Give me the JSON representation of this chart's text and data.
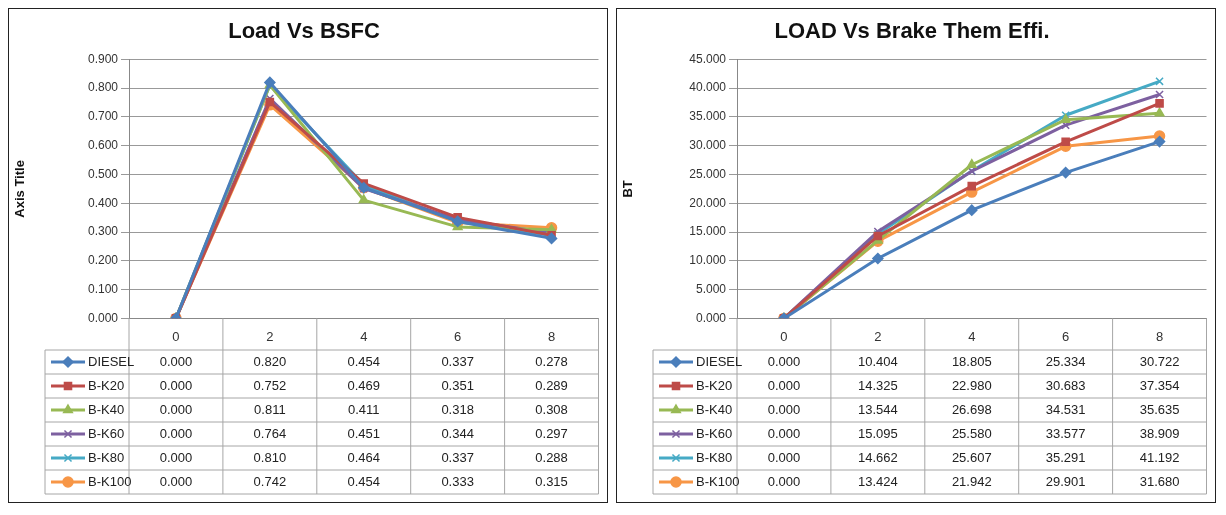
{
  "chart_data": [
    {
      "type": "line",
      "title": "Load Vs BSFC",
      "ylabel": "Axis Title",
      "categories": [
        "0",
        "2",
        "4",
        "6",
        "8"
      ],
      "ylim": [
        0,
        0.9
      ],
      "yticks": [
        {
          "value": 0,
          "label": "0.000"
        },
        {
          "value": 0.1,
          "label": "0.100"
        },
        {
          "value": 0.2,
          "label": "0.200"
        },
        {
          "value": 0.3,
          "label": "0.300"
        },
        {
          "value": 0.4,
          "label": "0.400"
        },
        {
          "value": 0.5,
          "label": "0.500"
        },
        {
          "value": 0.6,
          "label": "0.600"
        },
        {
          "value": 0.7,
          "label": "0.700"
        },
        {
          "value": 0.8,
          "label": "0.800"
        },
        {
          "value": 0.9,
          "label": "0.900"
        }
      ],
      "grid": "y",
      "legend": "bottom",
      "series": [
        {
          "name": "DIESEL",
          "color": "#4a7ebb",
          "marker": "diamond",
          "values": [
            0,
            0.82,
            0.454,
            0.337,
            0.278
          ],
          "value_labels": [
            "0.000",
            "0.820",
            "0.454",
            "0.337",
            "0.278"
          ]
        },
        {
          "name": "B-K20",
          "color": "#be4b48",
          "marker": "square",
          "values": [
            0,
            0.752,
            0.469,
            0.351,
            0.289
          ],
          "value_labels": [
            "0.000",
            "0.752",
            "0.469",
            "0.351",
            "0.289"
          ]
        },
        {
          "name": "B-K40",
          "color": "#98b954",
          "marker": "triangle",
          "values": [
            0,
            0.811,
            0.411,
            0.318,
            0.308
          ],
          "value_labels": [
            "0.000",
            "0.811",
            "0.411",
            "0.318",
            "0.308"
          ]
        },
        {
          "name": "B-K60",
          "color": "#7d60a0",
          "marker": "cross",
          "values": [
            0,
            0.764,
            0.451,
            0.344,
            0.297
          ],
          "value_labels": [
            "0.000",
            "0.764",
            "0.451",
            "0.344",
            "0.297"
          ]
        },
        {
          "name": "B-K80",
          "color": "#46aac5",
          "marker": "cross",
          "values": [
            0,
            0.81,
            0.464,
            0.337,
            0.288
          ],
          "value_labels": [
            "0.000",
            "0.810",
            "0.464",
            "0.337",
            "0.288"
          ]
        },
        {
          "name": "B-K100",
          "color": "#f79646",
          "marker": "circle",
          "values": [
            0,
            0.742,
            0.454,
            0.333,
            0.315
          ],
          "value_labels": [
            "0.000",
            "0.742",
            "0.454",
            "0.333",
            "0.315"
          ]
        }
      ]
    },
    {
      "type": "line",
      "title": "LOAD Vs Brake Them Effi.",
      "ylabel": "BT",
      "categories": [
        "0",
        "2",
        "4",
        "6",
        "8"
      ],
      "ylim": [
        0,
        45
      ],
      "yticks": [
        {
          "value": 0,
          "label": "0.000"
        },
        {
          "value": 5,
          "label": "5.000"
        },
        {
          "value": 10,
          "label": "10.000"
        },
        {
          "value": 15,
          "label": "15.000"
        },
        {
          "value": 20,
          "label": "20.000"
        },
        {
          "value": 25,
          "label": "25.000"
        },
        {
          "value": 30,
          "label": "30.000"
        },
        {
          "value": 35,
          "label": "35.000"
        },
        {
          "value": 40,
          "label": "40.000"
        },
        {
          "value": 45,
          "label": "45.000"
        }
      ],
      "grid": "y",
      "legend": "bottom",
      "series": [
        {
          "name": "DIESEL",
          "color": "#4a7ebb",
          "marker": "diamond",
          "values": [
            0,
            10.404,
            18.805,
            25.334,
            30.722
          ],
          "value_labels": [
            "0.000",
            "10.404",
            "18.805",
            "25.334",
            "30.722"
          ]
        },
        {
          "name": "B-K20",
          "color": "#be4b48",
          "marker": "square",
          "values": [
            0,
            14.325,
            22.98,
            30.683,
            37.354
          ],
          "value_labels": [
            "0.000",
            "14.325",
            "22.980",
            "30.683",
            "37.354"
          ]
        },
        {
          "name": "B-K40",
          "color": "#98b954",
          "marker": "triangle",
          "values": [
            0,
            13.544,
            26.698,
            34.531,
            35.635
          ],
          "value_labels": [
            "0.000",
            "13.544",
            "26.698",
            "34.531",
            "35.635"
          ]
        },
        {
          "name": "B-K60",
          "color": "#7d60a0",
          "marker": "cross",
          "values": [
            0,
            15.095,
            25.58,
            33.577,
            38.909
          ],
          "value_labels": [
            "0.000",
            "15.095",
            "25.580",
            "33.577",
            "38.909"
          ]
        },
        {
          "name": "B-K80",
          "color": "#46aac5",
          "marker": "cross",
          "values": [
            0,
            14.662,
            25.607,
            35.291,
            41.192
          ],
          "value_labels": [
            "0.000",
            "14.662",
            "25.607",
            "35.291",
            "41.192"
          ]
        },
        {
          "name": "B-K100",
          "color": "#f79646",
          "marker": "circle",
          "values": [
            0,
            13.424,
            21.942,
            29.901,
            31.68
          ],
          "value_labels": [
            "0.000",
            "13.424",
            "21.942",
            "29.901",
            "31.680"
          ]
        }
      ]
    }
  ]
}
